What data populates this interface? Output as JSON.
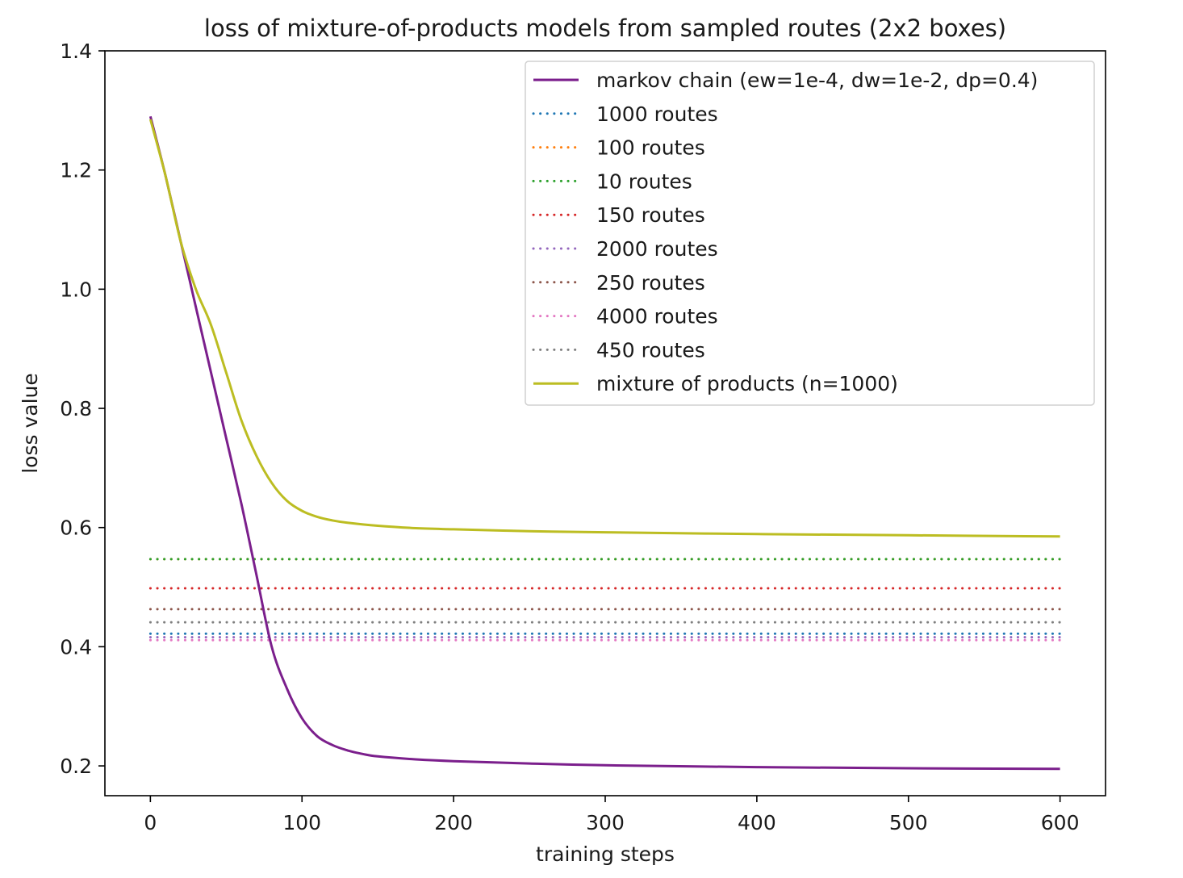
{
  "chart_data": {
    "type": "line",
    "title": "loss of mixture-of-products models from sampled routes (2x2 boxes)",
    "xlabel": "training steps",
    "ylabel": "loss value",
    "xlim": [
      -30,
      630
    ],
    "ylim": [
      0.15,
      1.4
    ],
    "xticks": [
      0,
      100,
      200,
      300,
      400,
      500,
      600
    ],
    "yticks": [
      0.2,
      0.4,
      0.6,
      0.8,
      1.0,
      1.2,
      1.4
    ],
    "ytick_labels": [
      "0.2",
      "0.4",
      "0.6",
      "0.8",
      "1.0",
      "1.2",
      "1.4"
    ],
    "legend_position": "upper right",
    "grid": false,
    "series": [
      {
        "name": "markov chain (ew=1e-4, dw=1e-2, dp=0.4)",
        "style": "solid",
        "color": "#7b1f8c",
        "x": [
          0,
          10,
          20,
          30,
          40,
          50,
          60,
          70,
          80,
          90,
          100,
          110,
          120,
          130,
          140,
          150,
          175,
          200,
          250,
          300,
          400,
          500,
          600
        ],
        "y": [
          1.29,
          1.19,
          1.08,
          0.97,
          0.86,
          0.75,
          0.64,
          0.52,
          0.4,
          0.33,
          0.28,
          0.25,
          0.235,
          0.226,
          0.22,
          0.216,
          0.211,
          0.208,
          0.204,
          0.201,
          0.198,
          0.196,
          0.195
        ]
      },
      {
        "name": "1000 routes",
        "style": "dotted",
        "color": "#1f77b4",
        "x": [
          0,
          600
        ],
        "y": [
          0.422,
          0.422
        ]
      },
      {
        "name": "100 routes",
        "style": "dotted",
        "color": "#ff7f0e",
        "x": [
          0,
          600
        ],
        "y": [
          0.547,
          0.547
        ]
      },
      {
        "name": "10 routes",
        "style": "dotted",
        "color": "#2ca02c",
        "x": [
          0,
          600
        ],
        "y": [
          0.547,
          0.547
        ]
      },
      {
        "name": "150 routes",
        "style": "dotted",
        "color": "#d62728",
        "x": [
          0,
          600
        ],
        "y": [
          0.498,
          0.498
        ]
      },
      {
        "name": "2000 routes",
        "style": "dotted",
        "color": "#9467bd",
        "x": [
          0,
          600
        ],
        "y": [
          0.416,
          0.416
        ]
      },
      {
        "name": "250 routes",
        "style": "dotted",
        "color": "#8c564b",
        "x": [
          0,
          600
        ],
        "y": [
          0.463,
          0.463
        ]
      },
      {
        "name": "4000 routes",
        "style": "dotted",
        "color": "#e377c2",
        "x": [
          0,
          600
        ],
        "y": [
          0.411,
          0.411
        ]
      },
      {
        "name": "450 routes",
        "style": "dotted",
        "color": "#7f7f7f",
        "x": [
          0,
          600
        ],
        "y": [
          0.441,
          0.441
        ]
      },
      {
        "name": "mixture of products (n=1000)",
        "style": "solid",
        "color": "#bcbd22",
        "x": [
          0,
          10,
          20,
          30,
          40,
          50,
          60,
          70,
          80,
          90,
          100,
          110,
          120,
          130,
          150,
          175,
          200,
          250,
          300,
          400,
          500,
          600
        ],
        "y": [
          1.285,
          1.19,
          1.08,
          1.0,
          0.94,
          0.86,
          0.78,
          0.72,
          0.675,
          0.645,
          0.628,
          0.618,
          0.612,
          0.608,
          0.603,
          0.599,
          0.597,
          0.594,
          0.592,
          0.589,
          0.587,
          0.585
        ]
      }
    ]
  }
}
